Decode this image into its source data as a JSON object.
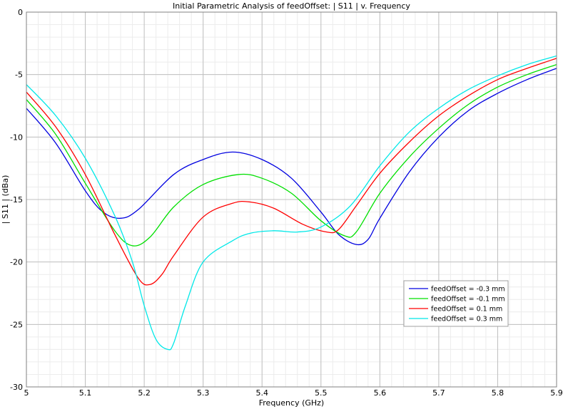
{
  "chart_data": {
    "type": "line",
    "title": "Initial Parametric Analysis of feedOffset: | S11 | v. Frequency",
    "xlabel": "Frequency (GHz)",
    "ylabel": "| S11 | (dBa)",
    "xlim": [
      5,
      5.9
    ],
    "ylim": [
      -30,
      0
    ],
    "xticks": [
      "5",
      "5.1",
      "5.2",
      "5.3",
      "5.4",
      "5.5",
      "5.6",
      "5.7",
      "5.8",
      "5.9"
    ],
    "yticks": [
      "0",
      "-5",
      "-10",
      "-15",
      "-20",
      "-25",
      "-30"
    ],
    "grid": true,
    "legend_position": "bottom-right",
    "series": [
      {
        "name": "feedOffset = -0.3 mm",
        "color": "#0000e0",
        "x": [
          5.0,
          5.05,
          5.1,
          5.13,
          5.16,
          5.19,
          5.25,
          5.3,
          5.35,
          5.4,
          5.45,
          5.5,
          5.53,
          5.56,
          5.58,
          5.6,
          5.65,
          5.7,
          5.75,
          5.8,
          5.85,
          5.9
        ],
        "y": [
          -7.7,
          -10.5,
          -14.3,
          -16.0,
          -16.5,
          -15.8,
          -13.0,
          -11.8,
          -11.2,
          -11.8,
          -13.3,
          -16.0,
          -17.8,
          -18.6,
          -18.2,
          -16.5,
          -12.8,
          -10.0,
          -7.9,
          -6.5,
          -5.4,
          -4.5
        ]
      },
      {
        "name": "feedOffset = -0.1 mm",
        "color": "#00e000",
        "x": [
          5.0,
          5.05,
          5.1,
          5.15,
          5.18,
          5.21,
          5.25,
          5.3,
          5.36,
          5.4,
          5.45,
          5.5,
          5.54,
          5.56,
          5.6,
          5.65,
          5.7,
          5.75,
          5.8,
          5.85,
          5.9
        ],
        "y": [
          -7.0,
          -9.8,
          -13.7,
          -17.5,
          -18.7,
          -18.0,
          -15.6,
          -13.8,
          -13.0,
          -13.3,
          -14.5,
          -16.7,
          -17.9,
          -17.6,
          -14.5,
          -11.6,
          -9.3,
          -7.4,
          -6.0,
          -5.0,
          -4.2
        ]
      },
      {
        "name": "feedOffset = 0.1 mm",
        "color": "#ff0000",
        "x": [
          5.0,
          5.05,
          5.1,
          5.15,
          5.19,
          5.21,
          5.23,
          5.25,
          5.3,
          5.35,
          5.38,
          5.42,
          5.47,
          5.51,
          5.53,
          5.56,
          5.6,
          5.65,
          5.7,
          5.75,
          5.8,
          5.85,
          5.9
        ],
        "y": [
          -6.4,
          -9.2,
          -13.0,
          -17.8,
          -21.3,
          -21.8,
          -21.0,
          -19.5,
          -16.4,
          -15.3,
          -15.2,
          -15.7,
          -17.0,
          -17.6,
          -17.4,
          -15.5,
          -12.9,
          -10.4,
          -8.3,
          -6.7,
          -5.4,
          -4.5,
          -3.7
        ]
      },
      {
        "name": "feedOffset = 0.3 mm",
        "color": "#00e8e8",
        "x": [
          5.0,
          5.05,
          5.1,
          5.15,
          5.18,
          5.2,
          5.22,
          5.24,
          5.25,
          5.27,
          5.3,
          5.35,
          5.38,
          5.42,
          5.46,
          5.5,
          5.55,
          5.6,
          5.65,
          5.7,
          5.75,
          5.8,
          5.85,
          5.9
        ],
        "y": [
          -5.8,
          -8.3,
          -11.7,
          -16.3,
          -20.0,
          -23.5,
          -26.2,
          -27.0,
          -26.5,
          -23.5,
          -20.0,
          -18.3,
          -17.7,
          -17.5,
          -17.6,
          -17.2,
          -15.5,
          -12.3,
          -9.6,
          -7.7,
          -6.2,
          -5.1,
          -4.2,
          -3.5
        ]
      }
    ]
  }
}
